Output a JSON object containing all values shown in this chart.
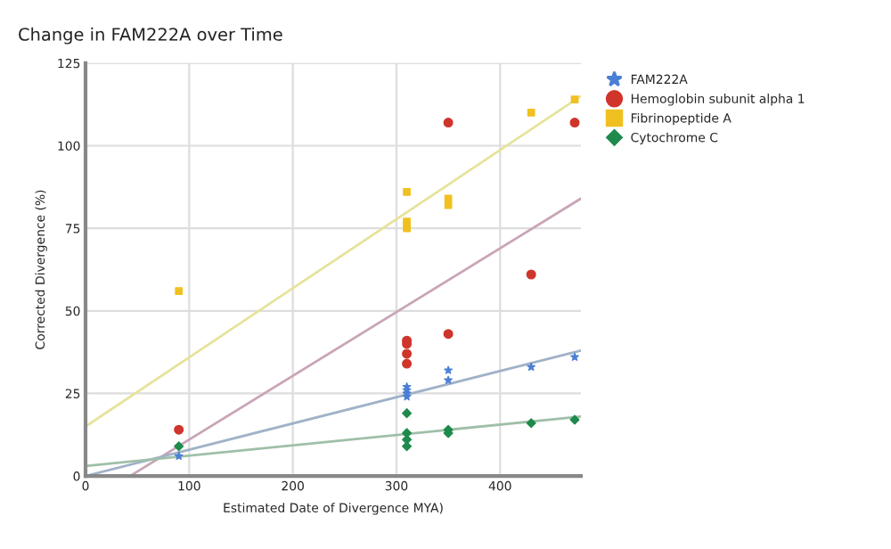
{
  "chart_data": {
    "type": "scatter",
    "title": "Change in FAM222A over Time",
    "xlabel": "Estimated Date of Divergence MYA)",
    "ylabel": "Corrected Divergence (%)",
    "xlim": [
      0,
      478
    ],
    "xticks": [
      0,
      100,
      200,
      300,
      400
    ],
    "ylim": [
      0,
      125
    ],
    "yticks": [
      0,
      25,
      50,
      75,
      100,
      125
    ],
    "grid": true,
    "legend": "right",
    "series": [
      {
        "type": "line",
        "color": "#e6e39a",
        "x": [
          0,
          478
        ],
        "values": [
          15,
          115
        ]
      },
      {
        "type": "line",
        "color": "#c9a5b8",
        "x": [
          43,
          478
        ],
        "values": [
          0,
          84
        ]
      },
      {
        "type": "line",
        "color": "#9fb2c8",
        "x": [
          0,
          478
        ],
        "values": [
          0,
          38
        ]
      },
      {
        "type": "line",
        "color": "#9fbfa9",
        "x": [
          0,
          478
        ],
        "values": [
          3,
          18
        ]
      },
      {
        "name": "FAM222A",
        "color": "#4a7fd4",
        "marker": "star",
        "x": [
          90,
          310,
          310,
          310,
          310,
          350,
          350,
          430,
          472
        ],
        "values": [
          6,
          24,
          25,
          26,
          27,
          29,
          32,
          33,
          36
        ]
      },
      {
        "name": "Hemoglobin subunit alpha 1",
        "color": "#d0352b",
        "marker": "circle",
        "x": [
          90,
          310,
          310,
          310,
          310,
          350,
          350,
          430,
          472
        ],
        "values": [
          14,
          34,
          37,
          40,
          41,
          43,
          107,
          61,
          107
        ]
      },
      {
        "name": "Fibrinopeptide A",
        "color": "#f0c020",
        "marker": "square",
        "x": [
          90,
          310,
          310,
          310,
          310,
          350,
          350,
          430,
          472
        ],
        "values": [
          56,
          86,
          77,
          76,
          75,
          82,
          84,
          110,
          114
        ]
      },
      {
        "name": "Cytochrome C",
        "color": "#1f8a4c",
        "marker": "diamond",
        "x": [
          90,
          310,
          310,
          310,
          310,
          350,
          350,
          430,
          472
        ],
        "values": [
          9,
          19,
          13,
          11,
          9,
          14,
          13,
          16,
          17
        ]
      }
    ]
  }
}
